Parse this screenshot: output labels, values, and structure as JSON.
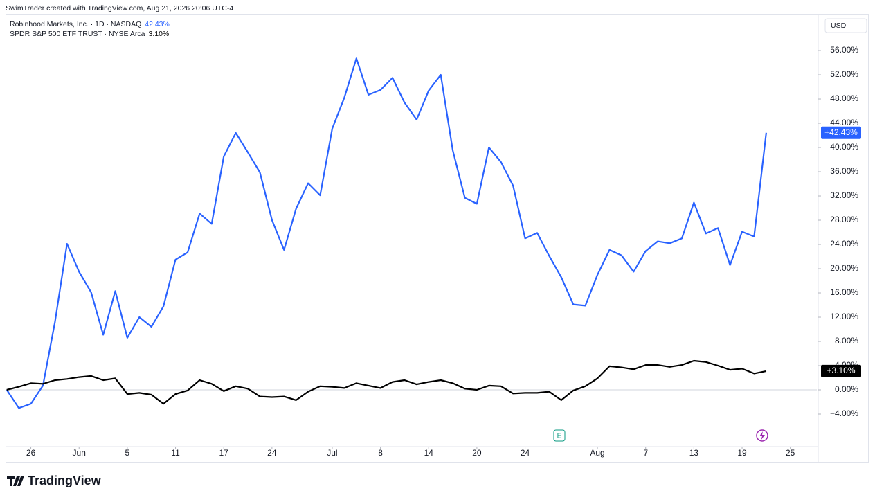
{
  "header": "SwimTrader created with TradingView.com, Aug 21, 2026 20:06 UTC-4",
  "logo": "TradingView",
  "chart_data": {
    "type": "line",
    "currency": "USD",
    "annotations": [
      "E"
    ],
    "xlim": [
      -0.1,
      67.2
    ],
    "xticks": [
      {
        "value": 2,
        "label": "26"
      },
      {
        "value": 6,
        "label": "Jun"
      },
      {
        "value": 10,
        "label": "5"
      },
      {
        "value": 14,
        "label": "11"
      },
      {
        "value": 18,
        "label": "17"
      },
      {
        "value": 22,
        "label": "24"
      },
      {
        "value": 27,
        "label": "Jul"
      },
      {
        "value": 31,
        "label": "8"
      },
      {
        "value": 35,
        "label": "14"
      },
      {
        "value": 39,
        "label": "20"
      },
      {
        "value": 43,
        "label": "24"
      },
      {
        "value": 49,
        "label": "Aug"
      },
      {
        "value": 53,
        "label": "7"
      },
      {
        "value": 57,
        "label": "13"
      },
      {
        "value": 61,
        "label": "19"
      },
      {
        "value": 65,
        "label": "25"
      }
    ],
    "ylim": [
      -9.37,
      62.06
    ],
    "yticks": [
      {
        "value": -4,
        "label": "−4.00%"
      },
      {
        "value": 0,
        "label": "0.00%"
      },
      {
        "value": 4,
        "label": "4.00%"
      },
      {
        "value": 8,
        "label": "8.00%"
      },
      {
        "value": 12,
        "label": "12.00%"
      },
      {
        "value": 16,
        "label": "16.00%"
      },
      {
        "value": 20,
        "label": "20.00%"
      },
      {
        "value": 24,
        "label": "24.00%"
      },
      {
        "value": 28,
        "label": "28.00%"
      },
      {
        "value": 32,
        "label": "32.00%"
      },
      {
        "value": 36,
        "label": "36.00%"
      },
      {
        "value": 40,
        "label": "40.00%"
      },
      {
        "value": 44,
        "label": "44.00%"
      },
      {
        "value": 48,
        "label": "48.00%"
      },
      {
        "value": 52,
        "label": "52.00%"
      },
      {
        "value": 56,
        "label": "56.00%"
      }
    ],
    "series": [
      {
        "name": "Robinhood Markets, Inc. · 1D · NASDAQ",
        "color": "#2962ff",
        "legend_value": "42.43%",
        "badge": "+42.43%",
        "values": [
          0,
          -3.0,
          -2.3,
          0.7,
          11.2,
          24.1,
          19.5,
          16.1,
          9.1,
          16.3,
          8.6,
          12.0,
          10.4,
          13.8,
          21.5,
          22.7,
          29.1,
          27.4,
          38.5,
          42.4,
          39.2,
          35.9,
          28.0,
          23.1,
          29.9,
          34.1,
          32.1,
          43.1,
          48.2,
          54.7,
          48.7,
          49.5,
          51.5,
          47.4,
          44.6,
          49.4,
          52.0,
          39.5,
          31.7,
          30.7,
          40.0,
          37.6,
          33.7,
          25.0,
          25.9,
          22.1,
          18.6,
          14.1,
          13.9,
          19.0,
          23.1,
          22.2,
          19.5,
          22.9,
          24.5,
          24.2,
          25.0,
          30.9,
          25.8,
          26.7,
          20.6,
          26.1,
          25.3,
          42.43
        ]
      },
      {
        "name": "SPDR S&P 500 ETF TRUST · NYSE Arca",
        "color": "#000000",
        "legend_value": "3.10%",
        "badge": "+3.10%",
        "values": [
          0,
          0.5,
          1.1,
          1.0,
          1.6,
          1.8,
          2.1,
          2.3,
          1.6,
          1.9,
          -0.7,
          -0.5,
          -0.8,
          -2.3,
          -0.7,
          -0.1,
          1.6,
          1.0,
          -0.2,
          0.6,
          0.2,
          -1.1,
          -1.2,
          -1.1,
          -1.7,
          -0.3,
          0.6,
          0.5,
          0.3,
          1.1,
          0.7,
          0.3,
          1.3,
          1.6,
          0.9,
          1.3,
          1.6,
          1.1,
          0.2,
          0.0,
          0.7,
          0.6,
          -0.6,
          -0.5,
          -0.5,
          -0.3,
          -1.7,
          -0.1,
          0.6,
          1.9,
          3.9,
          3.7,
          3.4,
          4.1,
          4.1,
          3.8,
          4.1,
          4.8,
          4.6,
          4.0,
          3.3,
          3.5,
          2.7,
          3.1
        ]
      }
    ]
  }
}
